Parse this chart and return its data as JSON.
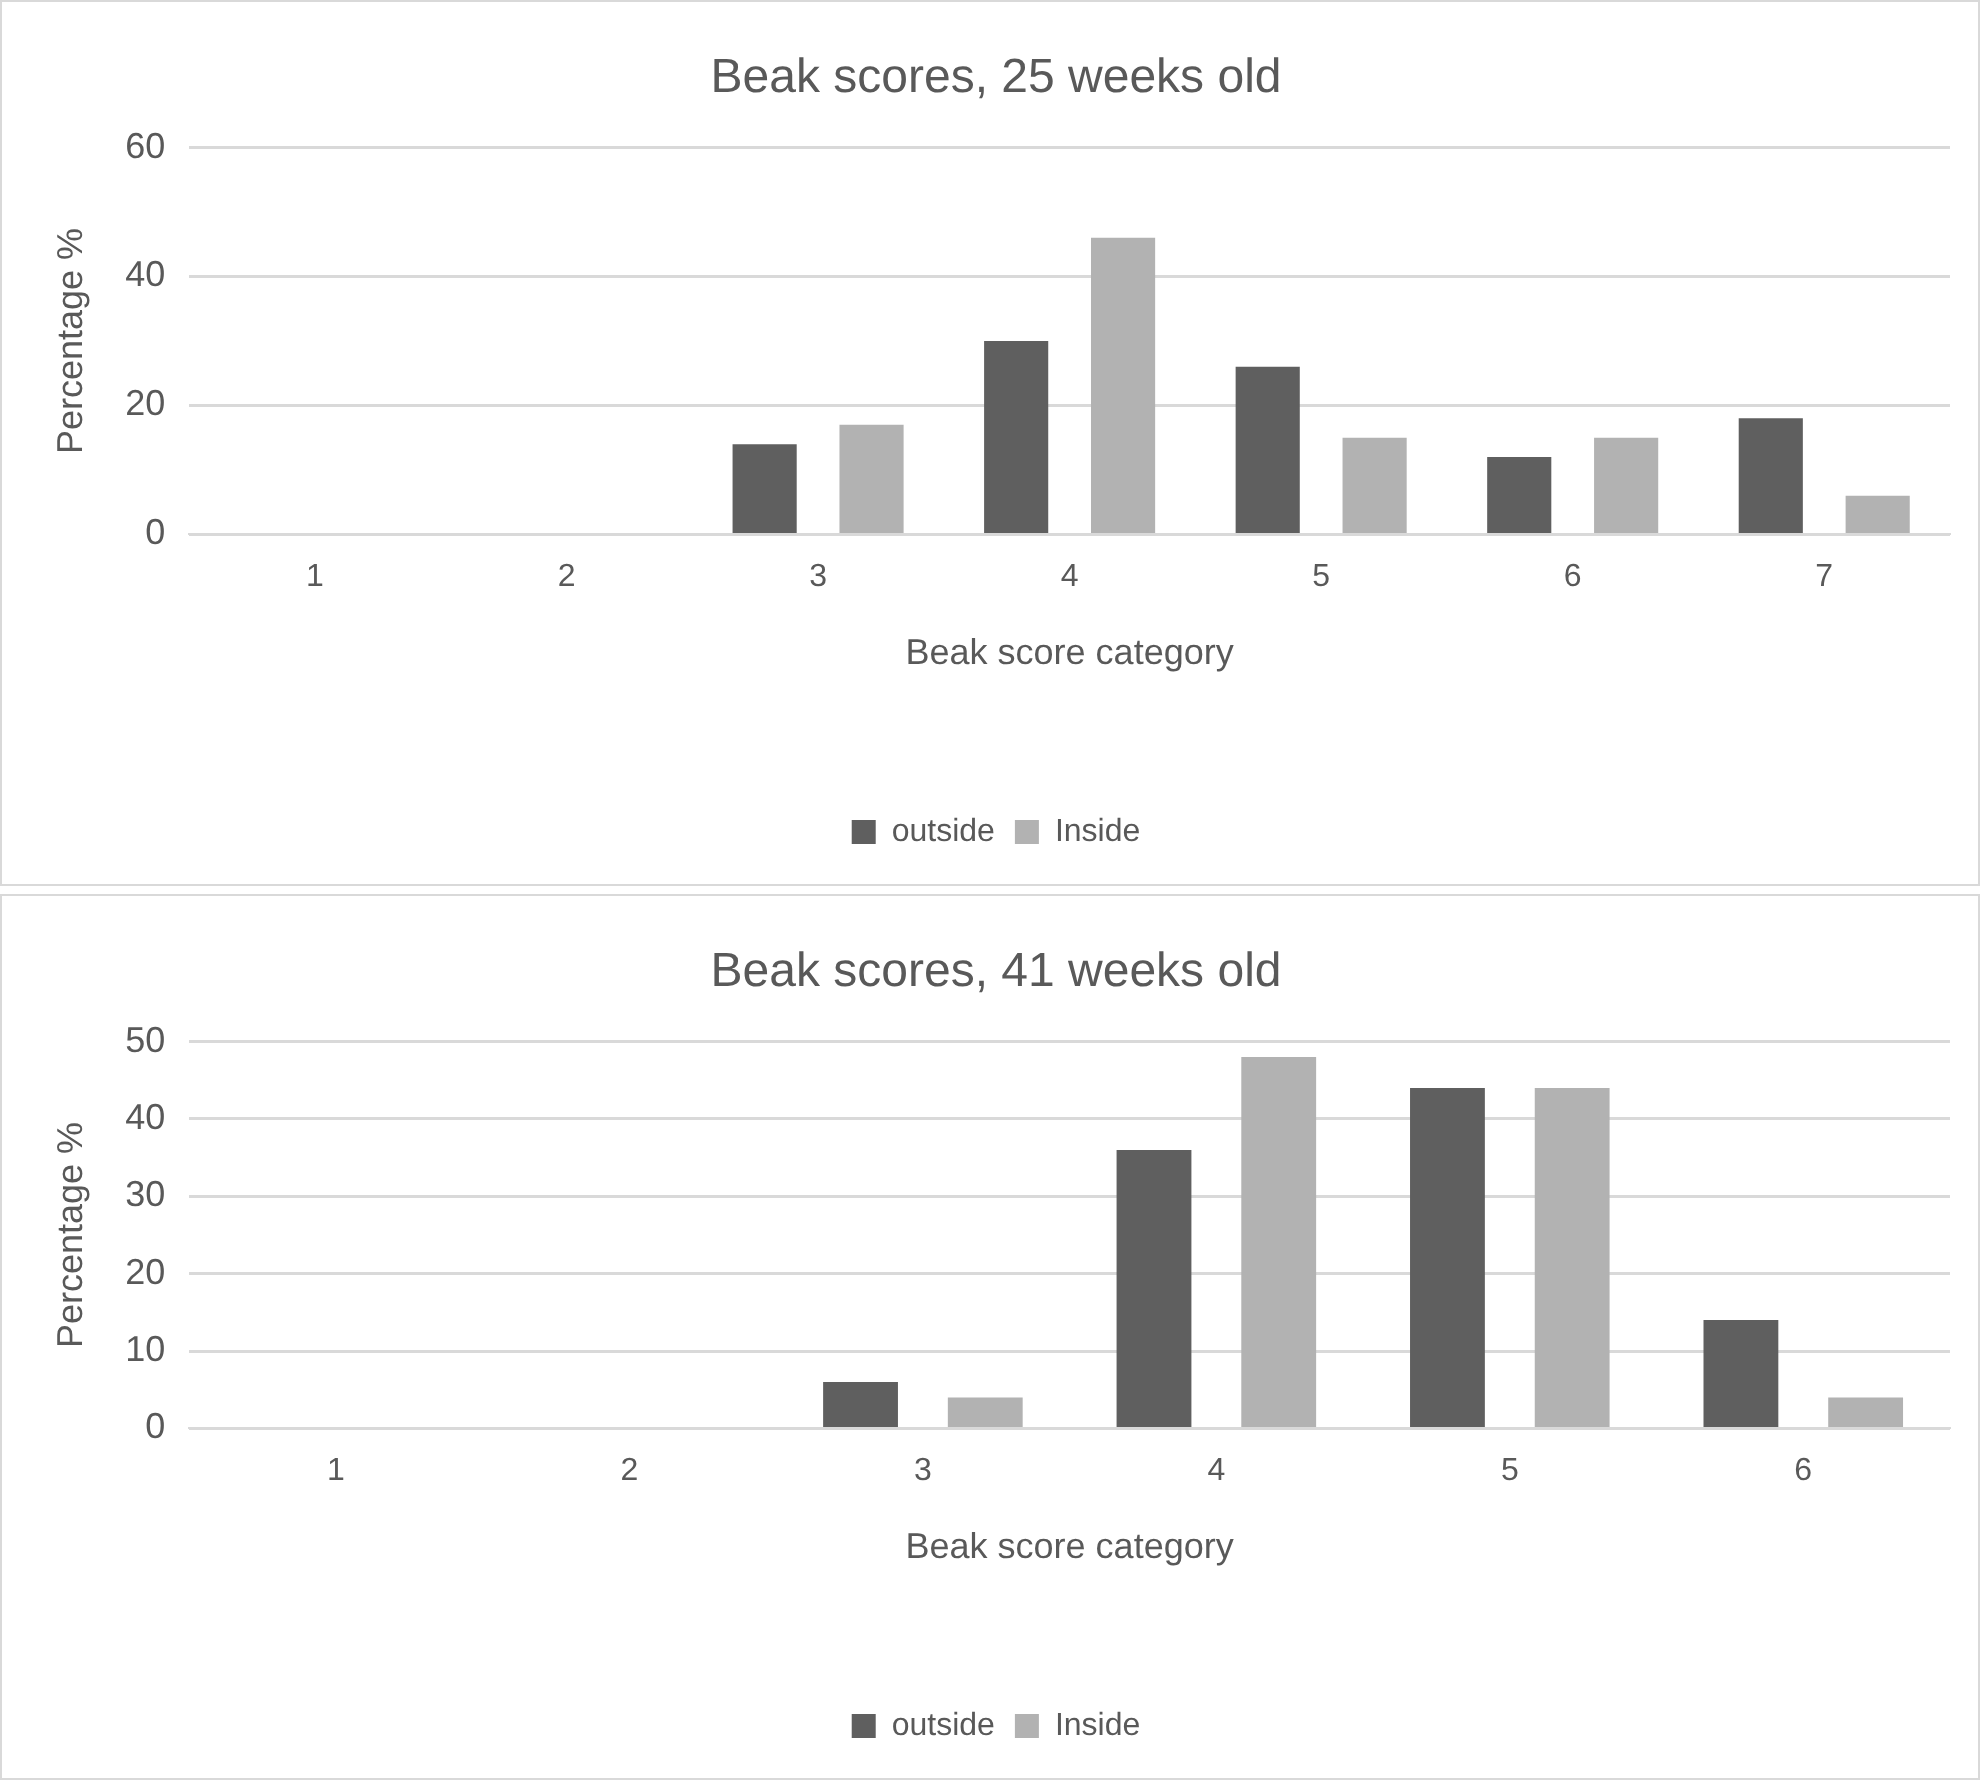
{
  "chart_data": [
    {
      "type": "bar",
      "title": "Beak scores, 25 weeks old",
      "xlabel": "Beak score category",
      "ylabel": "Percentage %",
      "categories": [
        "1",
        "2",
        "3",
        "4",
        "5",
        "6",
        "7"
      ],
      "series": [
        {
          "name": "outside",
          "color": "#5f5f5f",
          "values": [
            0,
            0,
            14,
            30,
            26,
            12,
            18
          ]
        },
        {
          "name": "Inside",
          "color": "#b2b2b2",
          "values": [
            0,
            0,
            17,
            46,
            15,
            15,
            6
          ]
        }
      ],
      "ylim": [
        0,
        60
      ],
      "yticks": [
        0,
        20,
        40,
        60
      ],
      "grid": "y",
      "legend": "bottom"
    },
    {
      "type": "bar",
      "title": "Beak scores, 41 weeks old",
      "xlabel": "Beak score category",
      "ylabel": "Percentage %",
      "categories": [
        "1",
        "2",
        "3",
        "4",
        "5",
        "6"
      ],
      "series": [
        {
          "name": "outside",
          "color": "#5f5f5f",
          "values": [
            0,
            0,
            6,
            36,
            44,
            14
          ]
        },
        {
          "name": "Inside",
          "color": "#b2b2b2",
          "values": [
            0,
            0,
            4,
            48,
            44,
            4
          ]
        }
      ],
      "ylim": [
        0,
        50
      ],
      "yticks": [
        0,
        10,
        20,
        30,
        40,
        50
      ],
      "grid": "y",
      "legend": "bottom"
    }
  ]
}
